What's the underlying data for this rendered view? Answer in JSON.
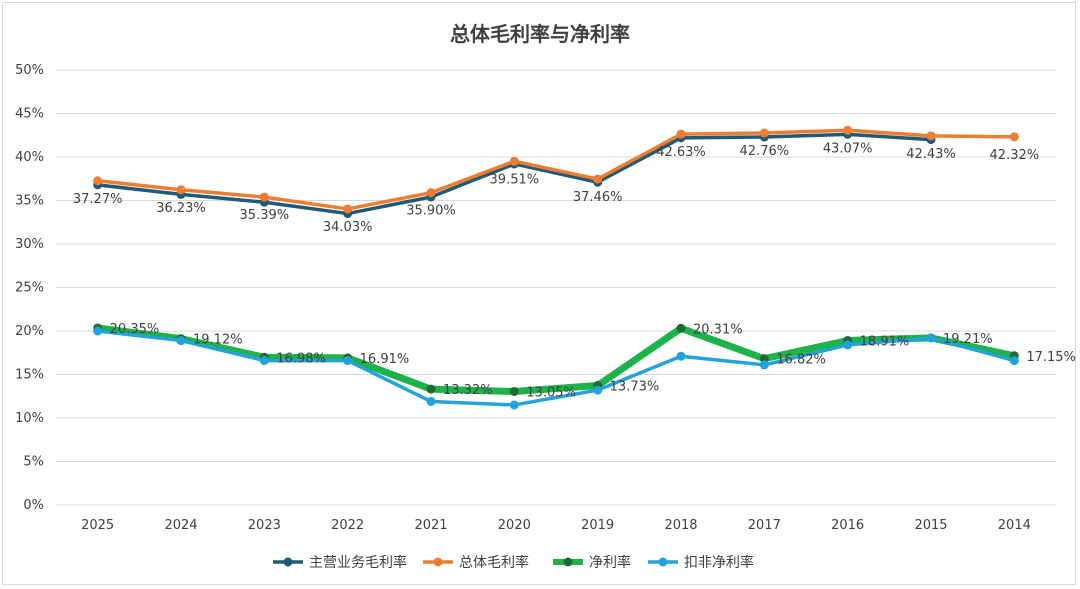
{
  "chart_data": {
    "type": "line",
    "title": "总体毛利率与净利率",
    "xlabel": "",
    "ylabel": "",
    "ylim": [
      0,
      50
    ],
    "ytick_step": 5,
    "ytick_labels": [
      "0%",
      "5%",
      "10%",
      "15%",
      "20%",
      "25%",
      "30%",
      "35%",
      "40%",
      "45%",
      "50%"
    ],
    "grid": true,
    "legend_position": "bottom",
    "categories": [
      "2025",
      "2024",
      "2023",
      "2022",
      "2021",
      "2020",
      "2019",
      "2018",
      "2017",
      "2016",
      "2015",
      "2014"
    ],
    "series": [
      {
        "name": "主营业务毛利率",
        "color": "#1f5a7a",
        "values": [
          36.8,
          35.7,
          34.8,
          33.5,
          35.4,
          39.2,
          37.1,
          42.2,
          42.3,
          42.6,
          42.0,
          null
        ],
        "labels": []
      },
      {
        "name": "总体毛利率",
        "color": "#ed7d31",
        "values": [
          37.27,
          36.23,
          35.39,
          34.03,
          35.9,
          39.51,
          37.46,
          42.63,
          42.76,
          43.07,
          42.43,
          42.32
        ],
        "labels": [
          "37.27%",
          "36.23%",
          "35.39%",
          "34.03%",
          "35.90%",
          "39.51%",
          "37.46%",
          "42.63%",
          "42.76%",
          "43.07%",
          "42.43%",
          "42.32%"
        ]
      },
      {
        "name": "净利率",
        "color": "#1db34a",
        "marker_color": "#1e6b31",
        "values": [
          20.35,
          19.12,
          16.98,
          16.91,
          13.32,
          13.05,
          13.73,
          20.31,
          16.82,
          18.91,
          19.21,
          17.15
        ],
        "labels": [
          "20.35%",
          "19.12%",
          "16.98%",
          "16.91%",
          "13.32%",
          "13.05%",
          "13.73%",
          "20.31%",
          "16.82%",
          "18.91%",
          "19.21%",
          "17.15%"
        ]
      },
      {
        "name": "扣非净利率",
        "color": "#22a3dc",
        "values": [
          20.0,
          18.9,
          16.6,
          16.6,
          11.9,
          11.5,
          13.2,
          17.1,
          16.1,
          18.4,
          19.2,
          16.6
        ],
        "labels": []
      }
    ]
  }
}
